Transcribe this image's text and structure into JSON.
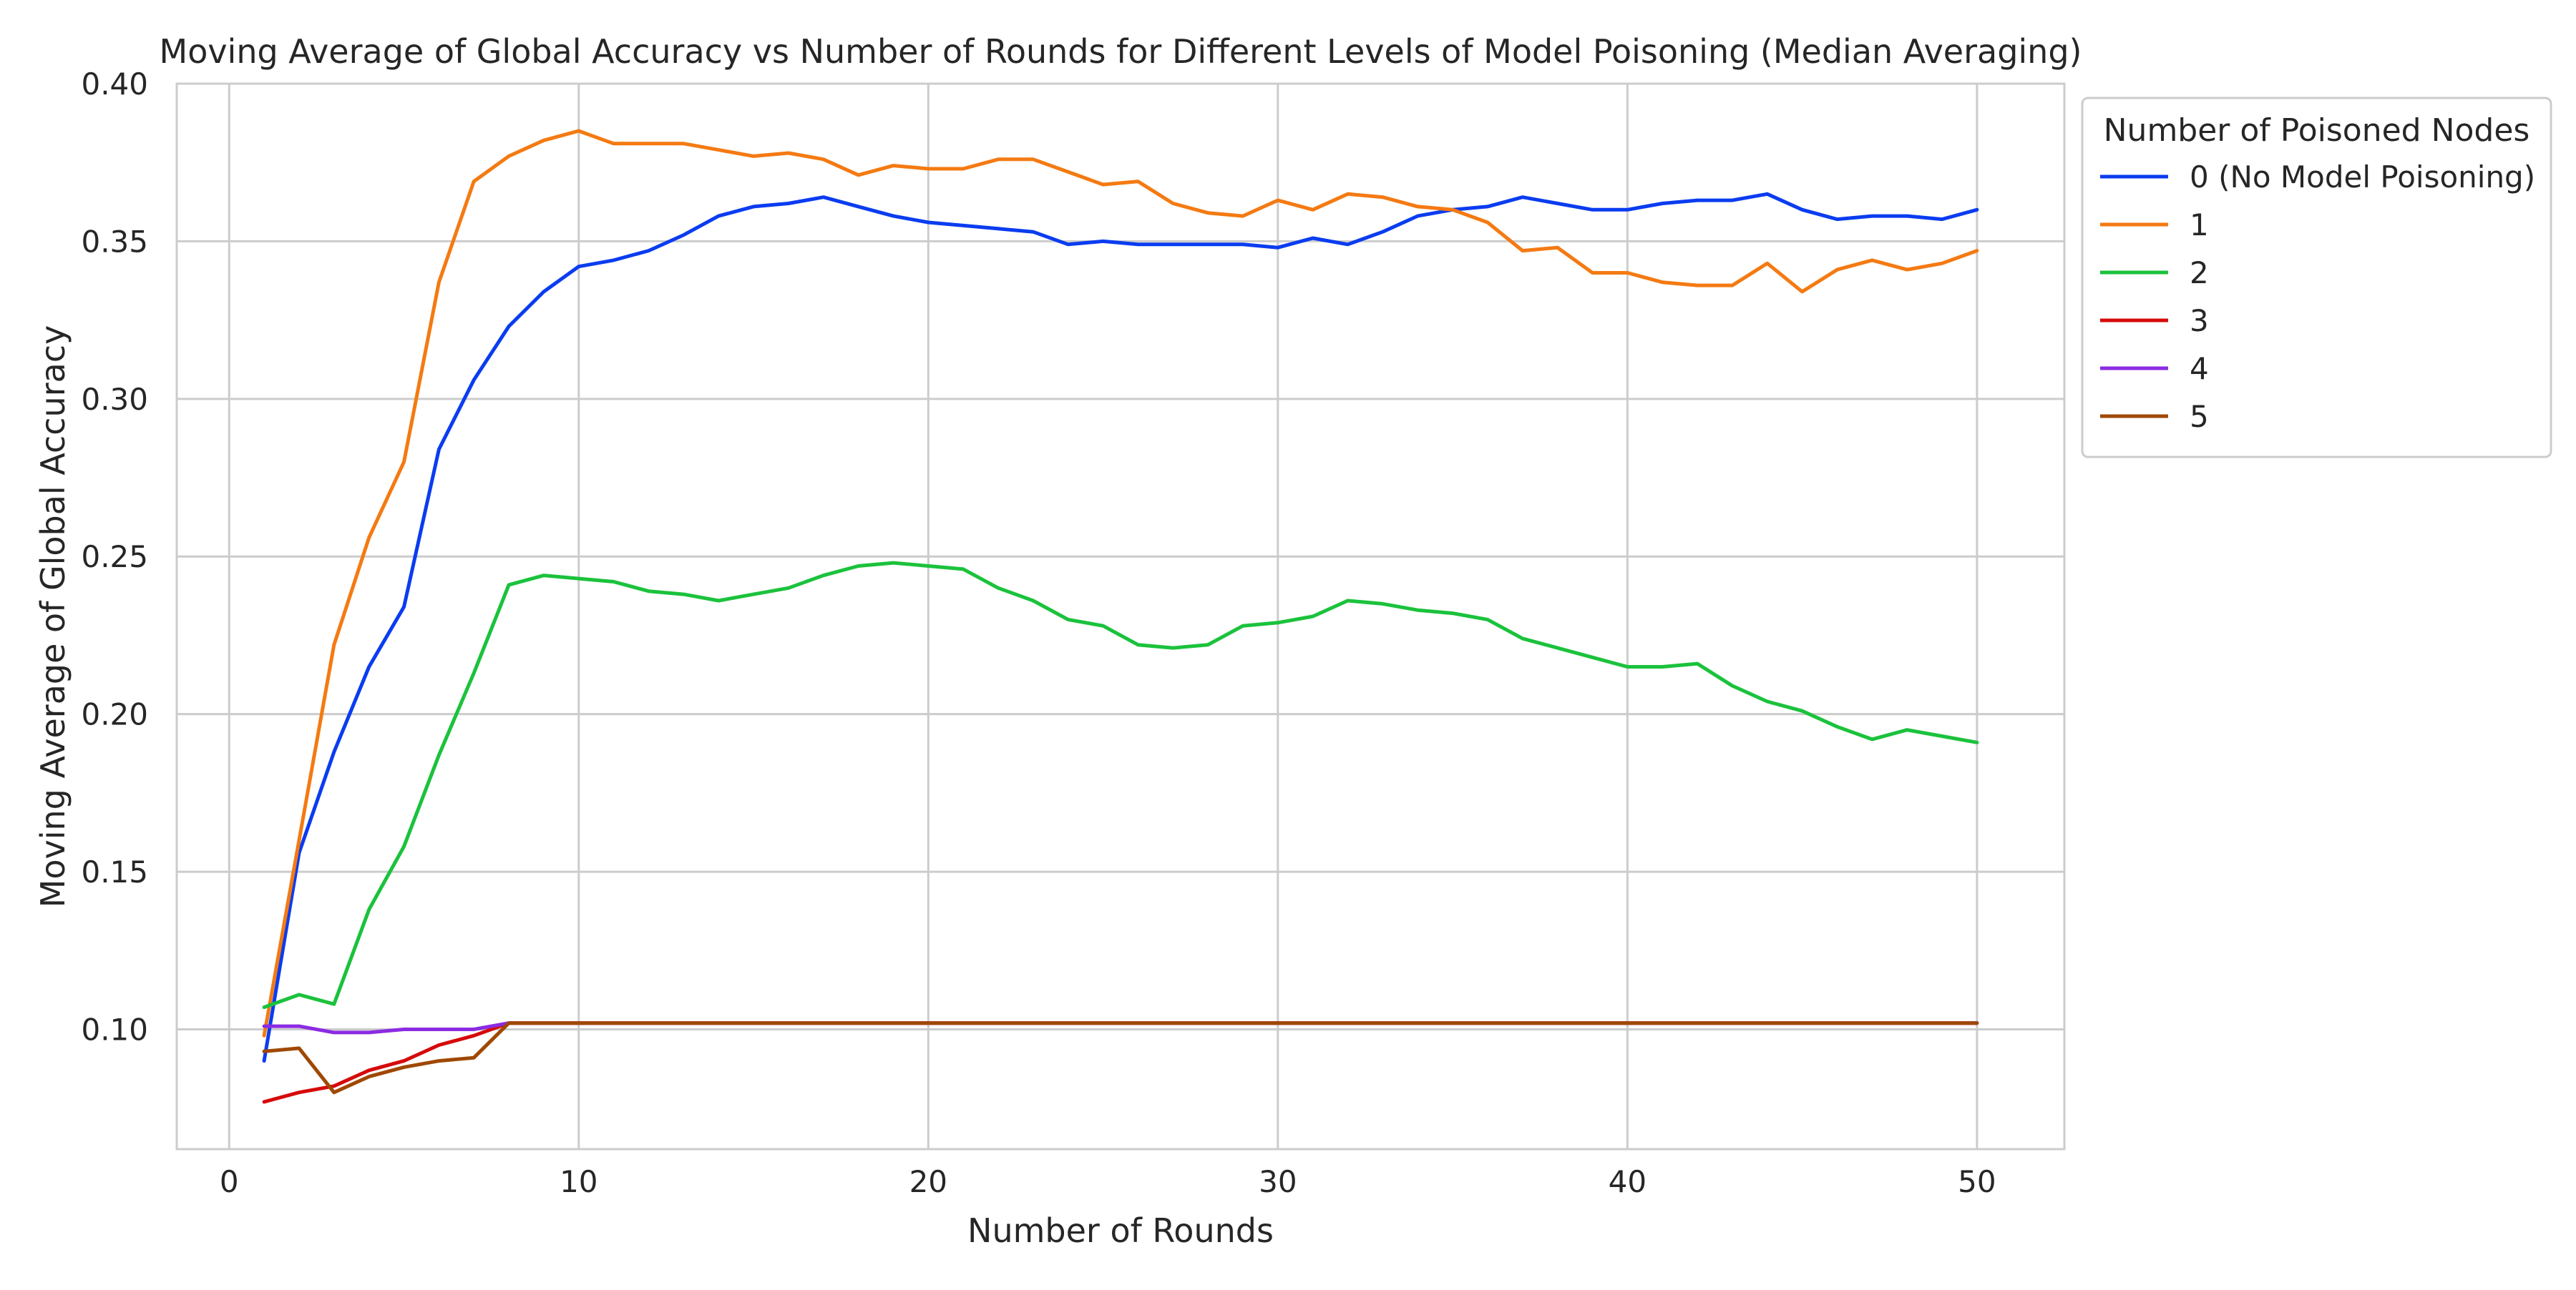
{
  "chart_data": {
    "type": "line",
    "title": "Moving Average of Global Accuracy vs Number of Rounds for Different Levels of Model Poisoning (Median Averaging)",
    "xlabel": "Number of Rounds",
    "ylabel": "Moving Average of Global Accuracy",
    "xlim": [
      -1.5,
      52.5
    ],
    "ylim": [
      0.062,
      0.4
    ],
    "xticks": [
      0,
      10,
      20,
      30,
      40,
      50
    ],
    "xtick_labels": [
      "0",
      "10",
      "20",
      "30",
      "40",
      "50"
    ],
    "yticks": [
      0.1,
      0.15,
      0.2,
      0.25,
      0.3,
      0.35,
      0.4
    ],
    "ytick_labels": [
      "0.10",
      "0.15",
      "0.20",
      "0.25",
      "0.30",
      "0.35",
      "0.40"
    ],
    "grid": true,
    "legend": {
      "title": "Number of Poisoned Nodes",
      "placement": "outside-top-right"
    },
    "x": [
      1,
      2,
      3,
      4,
      5,
      6,
      7,
      8,
      9,
      10,
      11,
      12,
      13,
      14,
      15,
      16,
      17,
      18,
      19,
      20,
      21,
      22,
      23,
      24,
      25,
      26,
      27,
      28,
      29,
      30,
      31,
      32,
      33,
      34,
      35,
      36,
      37,
      38,
      39,
      40,
      41,
      42,
      43,
      44,
      45,
      46,
      47,
      48,
      49,
      50
    ],
    "series": [
      {
        "name": "0 (No Model Poisoning)",
        "color": "#0a3cf0",
        "values": [
          0.09,
          0.156,
          0.188,
          0.215,
          0.234,
          0.284,
          0.306,
          0.323,
          0.334,
          0.342,
          0.344,
          0.347,
          0.352,
          0.358,
          0.361,
          0.362,
          0.364,
          0.361,
          0.358,
          0.356,
          0.355,
          0.354,
          0.353,
          0.349,
          0.35,
          0.349,
          0.349,
          0.349,
          0.349,
          0.348,
          0.351,
          0.349,
          0.353,
          0.358,
          0.36,
          0.361,
          0.364,
          0.362,
          0.36,
          0.36,
          0.362,
          0.363,
          0.363,
          0.365,
          0.36,
          0.357,
          0.358,
          0.358,
          0.357,
          0.36
        ]
      },
      {
        "name": "1",
        "color": "#f47a12",
        "values": [
          0.098,
          0.16,
          0.222,
          0.256,
          0.28,
          0.337,
          0.369,
          0.377,
          0.382,
          0.385,
          0.381,
          0.381,
          0.381,
          0.379,
          0.377,
          0.378,
          0.376,
          0.371,
          0.374,
          0.373,
          0.373,
          0.376,
          0.376,
          0.372,
          0.368,
          0.369,
          0.362,
          0.359,
          0.358,
          0.363,
          0.36,
          0.365,
          0.364,
          0.361,
          0.36,
          0.356,
          0.347,
          0.348,
          0.34,
          0.34,
          0.337,
          0.336,
          0.336,
          0.343,
          0.334,
          0.341,
          0.344,
          0.341,
          0.343,
          0.347
        ]
      },
      {
        "name": "2",
        "color": "#1bc23c",
        "values": [
          0.107,
          0.111,
          0.108,
          0.138,
          0.158,
          0.187,
          0.213,
          0.241,
          0.244,
          0.243,
          0.242,
          0.239,
          0.238,
          0.236,
          0.238,
          0.24,
          0.244,
          0.247,
          0.248,
          0.247,
          0.246,
          0.24,
          0.236,
          0.23,
          0.228,
          0.222,
          0.221,
          0.222,
          0.228,
          0.229,
          0.231,
          0.236,
          0.235,
          0.233,
          0.232,
          0.23,
          0.224,
          0.221,
          0.218,
          0.215,
          0.215,
          0.216,
          0.209,
          0.204,
          0.201,
          0.196,
          0.192,
          0.195,
          0.193,
          0.191
        ]
      },
      {
        "name": "3",
        "color": "#d60a0a",
        "values": [
          0.077,
          0.08,
          0.082,
          0.087,
          0.09,
          0.095,
          0.098,
          0.102,
          0.102,
          0.102,
          0.102,
          0.102,
          0.102,
          0.102,
          0.102,
          0.102,
          0.102,
          0.102,
          0.102,
          0.102,
          0.102,
          0.102,
          0.102,
          0.102,
          0.102,
          0.102,
          0.102,
          0.102,
          0.102,
          0.102,
          0.102,
          0.102,
          0.102,
          0.102,
          0.102,
          0.102,
          0.102,
          0.102,
          0.102,
          0.102,
          0.102,
          0.102,
          0.102,
          0.102,
          0.102,
          0.102,
          0.102,
          0.102,
          0.102,
          0.102
        ]
      },
      {
        "name": "4",
        "color": "#8b2be2",
        "values": [
          0.101,
          0.101,
          0.099,
          0.099,
          0.1,
          0.1,
          0.1,
          0.102,
          0.102,
          0.102,
          0.102,
          0.102,
          0.102,
          0.102,
          0.102,
          0.102,
          0.102,
          0.102,
          0.102,
          0.102,
          0.102,
          0.102,
          0.102,
          0.102,
          0.102,
          0.102,
          0.102,
          0.102,
          0.102,
          0.102,
          0.102,
          0.102,
          0.102,
          0.102,
          0.102,
          0.102,
          0.102,
          0.102,
          0.102,
          0.102,
          0.102,
          0.102,
          0.102,
          0.102,
          0.102,
          0.102,
          0.102,
          0.102,
          0.102,
          0.102
        ]
      },
      {
        "name": "5",
        "color": "#9f4800",
        "values": [
          0.093,
          0.094,
          0.08,
          0.085,
          0.088,
          0.09,
          0.091,
          0.102,
          0.102,
          0.102,
          0.102,
          0.102,
          0.102,
          0.102,
          0.102,
          0.102,
          0.102,
          0.102,
          0.102,
          0.102,
          0.102,
          0.102,
          0.102,
          0.102,
          0.102,
          0.102,
          0.102,
          0.102,
          0.102,
          0.102,
          0.102,
          0.102,
          0.102,
          0.102,
          0.102,
          0.102,
          0.102,
          0.102,
          0.102,
          0.102,
          0.102,
          0.102,
          0.102,
          0.102,
          0.102,
          0.102,
          0.102,
          0.102,
          0.102,
          0.102
        ]
      }
    ]
  }
}
